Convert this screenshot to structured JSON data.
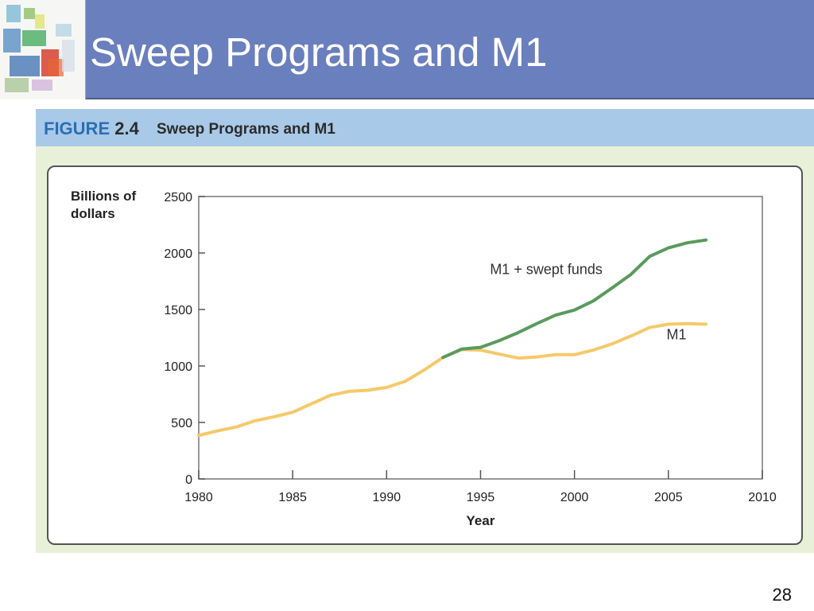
{
  "slide": {
    "title": "Sweep Programs and M1",
    "page_number": "28"
  },
  "figure": {
    "number_label": "FIGURE",
    "number": "2.4",
    "caption": "Sweep Programs and M1"
  },
  "colors": {
    "title_bar": "#6a7fbd",
    "figure_header": "#a9c9e8",
    "figure_background": "#e8f1d8",
    "m1_line": "#f5c96a",
    "swept_line": "#5a9a5e"
  },
  "chart_data": {
    "type": "line",
    "ylabel_lines": [
      "Billions of",
      "dollars"
    ],
    "xlabel": "Year",
    "xlim": [
      1980,
      2010
    ],
    "ylim": [
      0,
      2500
    ],
    "xticks": [
      1980,
      1985,
      1990,
      1995,
      2000,
      2005,
      2010
    ],
    "yticks": [
      0,
      500,
      1000,
      1500,
      2000,
      2500
    ],
    "grid": false,
    "series": [
      {
        "name": "M1",
        "color": "#f5c96a",
        "points": [
          [
            1980,
            385
          ],
          [
            1981,
            425
          ],
          [
            1982,
            460
          ],
          [
            1983,
            515
          ],
          [
            1984,
            550
          ],
          [
            1985,
            590
          ],
          [
            1986,
            665
          ],
          [
            1987,
            740
          ],
          [
            1988,
            775
          ],
          [
            1989,
            785
          ],
          [
            1990,
            810
          ],
          [
            1991,
            865
          ],
          [
            1992,
            965
          ],
          [
            1993,
            1075
          ],
          [
            1994,
            1145
          ],
          [
            1995,
            1140
          ],
          [
            1996,
            1105
          ],
          [
            1997,
            1070
          ],
          [
            1998,
            1080
          ],
          [
            1999,
            1100
          ],
          [
            2000,
            1100
          ],
          [
            2001,
            1140
          ],
          [
            2002,
            1195
          ],
          [
            2003,
            1265
          ],
          [
            2004,
            1340
          ],
          [
            2005,
            1370
          ],
          [
            2006,
            1375
          ],
          [
            2007,
            1370
          ]
        ]
      },
      {
        "name": "M1 + swept funds",
        "color": "#5a9a5e",
        "points": [
          [
            1993,
            1075
          ],
          [
            1994,
            1150
          ],
          [
            1995,
            1165
          ],
          [
            1996,
            1225
          ],
          [
            1997,
            1295
          ],
          [
            1998,
            1375
          ],
          [
            1999,
            1450
          ],
          [
            2000,
            1495
          ],
          [
            2001,
            1575
          ],
          [
            2002,
            1690
          ],
          [
            2003,
            1810
          ],
          [
            2004,
            1970
          ],
          [
            2005,
            2045
          ],
          [
            2006,
            2090
          ],
          [
            2007,
            2115
          ]
        ]
      }
    ],
    "annotations": [
      {
        "text": "M1 + swept funds",
        "x": 1995.5,
        "y": 1815,
        "series": "M1 + swept funds"
      },
      {
        "text": "M1",
        "x": 2004.9,
        "y": 1235,
        "series": "M1"
      }
    ]
  }
}
